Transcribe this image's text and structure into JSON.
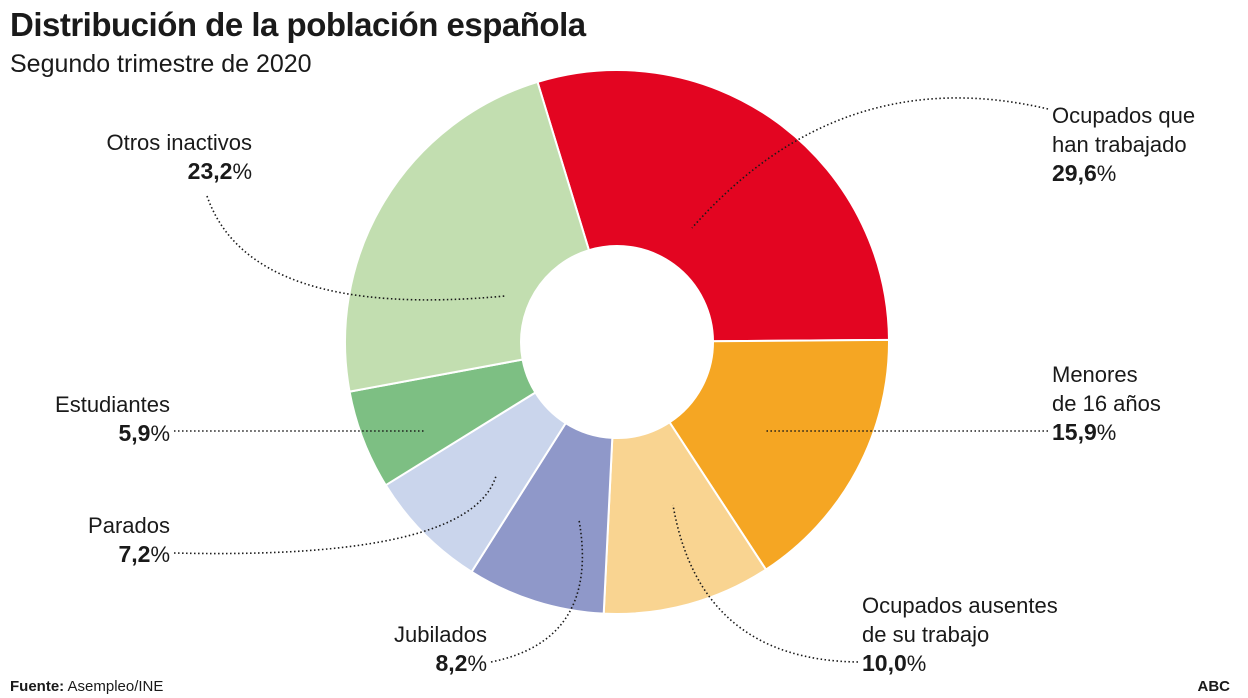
{
  "header": {
    "title": "Distribución de la población española",
    "subtitle": "Segundo trimestre de 2020"
  },
  "footer": {
    "source_label": "Fuente:",
    "source_value": "Asempleo/INE",
    "brand": "ABC"
  },
  "chart_data": {
    "type": "pie",
    "title": "Distribución de la población española",
    "subtitle": "Segundo trimestre de 2020",
    "unit": "%",
    "slices": [
      {
        "label_lines": [
          "Ocupados que",
          "han trabajado"
        ],
        "value": 29.6,
        "value_text": "29,6",
        "color": "#e30521"
      },
      {
        "label_lines": [
          "Menores",
          "de 16 años"
        ],
        "value": 15.9,
        "value_text": "15,9",
        "color": "#f5a623"
      },
      {
        "label_lines": [
          "Ocupados ausentes",
          "de su trabajo"
        ],
        "value": 10.0,
        "value_text": "10,0",
        "color": "#f9d491"
      },
      {
        "label_lines": [
          "Jubilados"
        ],
        "value": 8.2,
        "value_text": "8,2",
        "color": "#8f98c9"
      },
      {
        "label_lines": [
          "Parados"
        ],
        "value": 7.2,
        "value_text": "7,2",
        "color": "#cad5ec"
      },
      {
        "label_lines": [
          "Estudiantes"
        ],
        "value": 5.9,
        "value_text": "5,9",
        "color": "#7dbf83"
      },
      {
        "label_lines": [
          "Otros inactivos"
        ],
        "value": 23.2,
        "value_text": "23,2",
        "color": "#c2deb0"
      }
    ]
  }
}
